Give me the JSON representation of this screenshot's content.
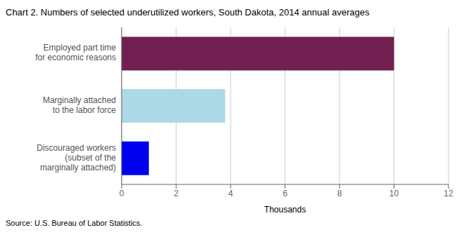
{
  "chart_data": {
    "type": "bar",
    "orientation": "horizontal",
    "title": "Chart 2. Numbers of selected underutilized workers, South Dakota, 2014 annual averages",
    "categories": [
      "Discouraged workers\n(subset of the\nmarginally attached)",
      "Marginally attached\nto the labor force",
      "Employed part time\nfor economic reasons"
    ],
    "values": [
      1,
      3.8,
      10
    ],
    "colors": [
      "#0000ee",
      "#add8e6",
      "#722052"
    ],
    "xlim": [
      0,
      12
    ],
    "xticks": [
      0,
      2,
      4,
      6,
      8,
      10,
      12
    ],
    "xlabel": "Thousands",
    "annotations": [
      "Source: U.S. Bureau of Labor Statistics."
    ],
    "grid": true
  }
}
